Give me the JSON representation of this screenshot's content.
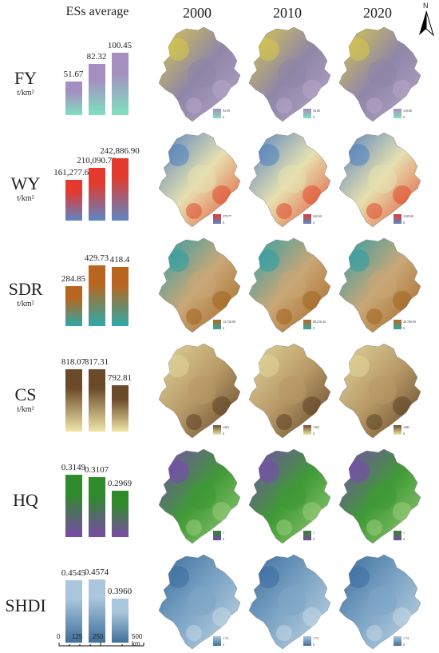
{
  "header": {
    "average_title": "ESs average",
    "years": [
      "2000",
      "2010",
      "2020"
    ]
  },
  "north_label": "N",
  "scale": {
    "ticks": [
      "0",
      "125",
      "250",
      "500 km"
    ]
  },
  "rows": [
    {
      "name": "FY",
      "unit": "t/km²",
      "values": [
        "51.67",
        "82.32",
        "100.45"
      ],
      "fractions": [
        0.52,
        0.8,
        0.98
      ],
      "colors": [
        "#7fe0c0",
        "#a58ec0"
      ],
      "map_colors": [
        "#d8c94a",
        "#8f86a8",
        "#b7a6c8"
      ],
      "legends": [
        {
          "max": "93.99",
          "min": "0"
        },
        {
          "max": "94.80",
          "min": "0"
        },
        {
          "max": "118.86",
          "min": "0"
        }
      ]
    },
    {
      "name": "WY",
      "unit": "t/km²",
      "values": [
        "161,277.60",
        "210,090.70",
        "242,886.90"
      ],
      "fractions": [
        0.64,
        0.83,
        0.97
      ],
      "colors": [
        "#5d86c4",
        "#e33a30"
      ],
      "map_colors": [
        "#4f7fbf",
        "#e6e0b0",
        "#e04b2d"
      ],
      "legends": [
        {
          "max": "379.77",
          "min": "0"
        },
        {
          "max": "620.00",
          "min": "0"
        },
        {
          "max": "1189.00",
          "min": "0"
        }
      ]
    },
    {
      "name": "SDR",
      "unit": "t/km²",
      "values": [
        "284.85",
        "429.73",
        "418.4"
      ],
      "fractions": [
        0.63,
        0.95,
        0.93
      ],
      "colors": [
        "#2ea8a8",
        "#b8661f"
      ],
      "map_colors": [
        "#2b9fa6",
        "#c9a777",
        "#a3651f"
      ],
      "legends": [
        {
          "max": "13,726.80",
          "min": "0"
        },
        {
          "max": "88,218.30",
          "min": "0"
        },
        {
          "max": "20,706.90",
          "min": "0"
        }
      ]
    },
    {
      "name": "CS",
      "unit": "t/km²",
      "values": [
        "818.07",
        "817.31",
        "792.81"
      ],
      "fractions": [
        0.98,
        0.97,
        0.73
      ],
      "colors": [
        "#f0e6a8",
        "#6b4a2a"
      ],
      "map_colors": [
        "#e1d49a",
        "#b89a68",
        "#5e4225"
      ],
      "legends": [
        {
          "max": "1382",
          "min": "0"
        },
        {
          "max": "1382",
          "min": "0"
        },
        {
          "max": "1382",
          "min": "0"
        }
      ]
    },
    {
      "name": "HQ",
      "unit": "",
      "values": [
        "0.3149",
        "0.3107",
        "0.2969"
      ],
      "fractions": [
        0.98,
        0.94,
        0.73
      ],
      "colors": [
        "#7a4aa8",
        "#2e8a2a"
      ],
      "map_colors": [
        "#7a48b2",
        "#3f9a35",
        "#9acd7a"
      ],
      "legends": [
        {
          "max": "1",
          "min": "0"
        },
        {
          "max": "1",
          "min": "0"
        },
        {
          "max": "1",
          "min": "0"
        }
      ]
    },
    {
      "name": "SHDI",
      "unit": "",
      "values": [
        "0.4545",
        "0.4574",
        "0.3960"
      ],
      "fractions": [
        0.98,
        0.99,
        0.69
      ],
      "colors": [
        "#3f6f9a",
        "#a9c6dc"
      ],
      "map_colors": [
        "#3b6e9e",
        "#7fa6c6",
        "#c4d8e6"
      ],
      "legends": [
        {
          "max": "1.74",
          "min": "0"
        },
        {
          "max": "1.74",
          "min": "0"
        },
        {
          "max": "1.74",
          "min": "0"
        }
      ]
    }
  ]
}
